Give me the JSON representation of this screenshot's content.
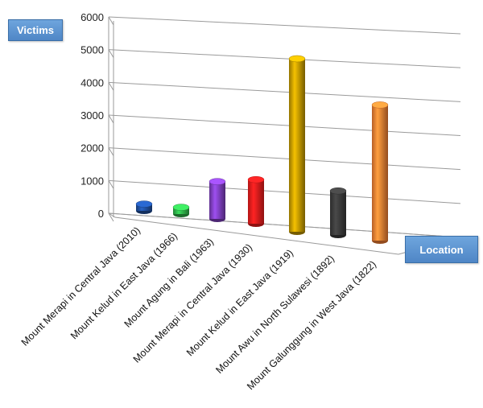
{
  "chart_data": {
    "type": "bar",
    "title": "",
    "ylabel": "Victims",
    "xlabel": "Location",
    "ylim": [
      0,
      6000
    ],
    "yticks": [
      0,
      1000,
      2000,
      3000,
      4000,
      5000,
      6000
    ],
    "grid": true,
    "categories": [
      "Mount Merapi in Central Java (2010)",
      "Mount Kelud in East Java (1966)",
      "Mount Agung in Bali (1963)",
      "Mount Merapi in Central Java (1930)",
      "Mount Kelud in East Java (1919)",
      "Mount Awu in North Sulawesi  (1892)",
      "Mount Galunggung in West Java (1822)"
    ],
    "values": [
      200,
      200,
      1100,
      1300,
      5100,
      1300,
      4000
    ],
    "colors": [
      "#1f4e9c",
      "#2fb24a",
      "#7e3fc0",
      "#ee1c1c",
      "#c49a00",
      "#3a3a3a",
      "#f57f32"
    ]
  }
}
